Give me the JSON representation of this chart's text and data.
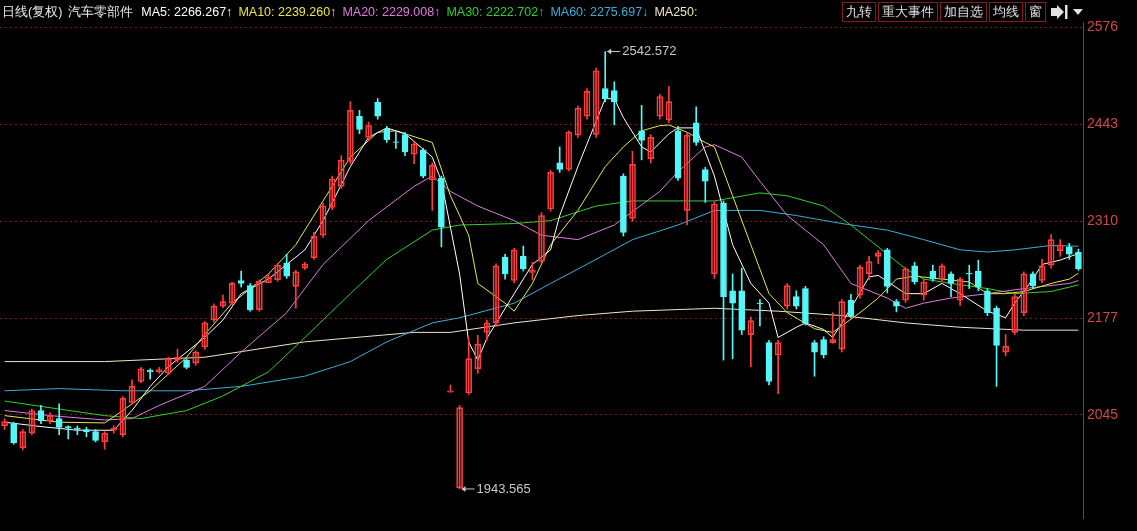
{
  "chart_data": {
    "type": "candlestick",
    "title": "日线(复权)",
    "subtitle": "汽车零部件",
    "categories": [
      null,
      null,
      null,
      null,
      null,
      null,
      null,
      null,
      null,
      null,
      null,
      null,
      null,
      null,
      null,
      null,
      null,
      null,
      null,
      null,
      null,
      null,
      null,
      null,
      null,
      null,
      null,
      null,
      null,
      null,
      null,
      null,
      null,
      null,
      null,
      null,
      null,
      null,
      null,
      null,
      null,
      null,
      null,
      null,
      null,
      null,
      null,
      null,
      null,
      null,
      null,
      null,
      null,
      null,
      null,
      null,
      null,
      null,
      null,
      null,
      null,
      null,
      null,
      null,
      null,
      null,
      null,
      null,
      null,
      null,
      null,
      null,
      null,
      null,
      null,
      null,
      null,
      null,
      null,
      null,
      null,
      null,
      null,
      null,
      null,
      null,
      null,
      null,
      null,
      null,
      null,
      null,
      null,
      null,
      null,
      null,
      null,
      null,
      null,
      null,
      null,
      null,
      null,
      null,
      null,
      null,
      null,
      null,
      null,
      null,
      null,
      null,
      null,
      null,
      null,
      null,
      null,
      null,
      null
    ],
    "ohlc": [
      [
        2030,
        2040,
        2025,
        2036
      ],
      [
        2033,
        2035,
        2005,
        2007
      ],
      [
        2000,
        2025,
        1997,
        2022
      ],
      [
        2020,
        2053,
        2018,
        2051
      ],
      [
        2051,
        2058,
        2033,
        2037
      ],
      [
        2037,
        2048,
        2033,
        2044
      ],
      [
        2040,
        2060,
        2018,
        2028
      ],
      [
        2029,
        2030,
        2012,
        2027
      ],
      [
        2027,
        2030,
        2018,
        2025
      ],
      [
        2025,
        2028,
        2015,
        2022
      ],
      [
        2022,
        2025,
        2008,
        2010
      ],
      [
        2008,
        2022,
        1998,
        2020
      ],
      [
        2024,
        2030,
        2020,
        2027
      ],
      [
        2018,
        2070,
        2015,
        2068
      ],
      [
        2062,
        2093,
        2060,
        2084
      ],
      [
        2091,
        2110,
        2089,
        2108
      ],
      [
        2106,
        2108,
        2094,
        2104
      ],
      [
        2104,
        2110,
        2102,
        2107
      ],
      [
        2102,
        2124,
        2100,
        2122
      ],
      [
        2120,
        2135,
        2117,
        2124
      ],
      [
        2120,
        2122,
        2108,
        2110
      ],
      [
        2116,
        2133,
        2113,
        2131
      ],
      [
        2138,
        2173,
        2135,
        2171
      ],
      [
        2175,
        2197,
        2172,
        2194
      ],
      [
        2194,
        2209,
        2192,
        2200
      ],
      [
        2198,
        2227,
        2196,
        2225
      ],
      [
        2229,
        2242,
        2220,
        2225
      ],
      [
        2222,
        2225,
        2187,
        2189
      ],
      [
        2189,
        2230,
        2187,
        2228
      ],
      [
        2226,
        2238,
        2226,
        2234
      ],
      [
        2230,
        2252,
        2228,
        2250
      ],
      [
        2253,
        2265,
        2232,
        2235
      ],
      [
        2221,
        2243,
        2191,
        2241
      ],
      [
        2246,
        2254,
        2244,
        2252
      ],
      [
        2260,
        2295,
        2258,
        2290
      ],
      [
        2291,
        2335,
        2288,
        2331
      ],
      [
        2329,
        2372,
        2326,
        2368
      ],
      [
        2358,
        2400,
        2355,
        2394
      ],
      [
        2392,
        2474,
        2389,
        2462
      ],
      [
        2454,
        2462,
        2430,
        2436
      ],
      [
        2425,
        2446,
        2420,
        2441
      ],
      [
        2473,
        2478,
        2450,
        2454
      ],
      [
        2436,
        2440,
        2418,
        2422
      ],
      [
        2419,
        2432,
        2410,
        2418
      ],
      [
        2429,
        2432,
        2400,
        2405
      ],
      [
        2402,
        2420,
        2389,
        2416
      ],
      [
        2408,
        2410,
        2370,
        2372
      ],
      [
        2367,
        2390,
        2325,
        2387
      ],
      [
        2369,
        2372,
        2275,
        2302
      ],
      [
        2076,
        2086,
        2076,
        2078
      ],
      [
        1945,
        2058,
        1943.565,
        2055
      ],
      [
        2075,
        2151,
        2073,
        2122
      ],
      [
        2108,
        2154,
        2102,
        2142
      ],
      [
        2158,
        2175,
        2147,
        2171
      ],
      [
        2171,
        2252,
        2166,
        2249
      ],
      [
        2261,
        2265,
        2231,
        2238
      ],
      [
        2229,
        2273,
        2226,
        2271
      ],
      [
        2262,
        2276,
        2242,
        2245
      ],
      [
        2240,
        2254,
        2230,
        2243
      ],
      [
        2255,
        2322,
        2252,
        2318
      ],
      [
        2327,
        2380,
        2324,
        2377
      ],
      [
        2390,
        2412,
        2377,
        2381
      ],
      [
        2381,
        2434,
        2379,
        2432
      ],
      [
        2428,
        2468,
        2425,
        2465
      ],
      [
        2454,
        2492,
        2450,
        2488
      ],
      [
        2429,
        2520,
        2425,
        2516
      ],
      [
        2492,
        2542.572,
        2474,
        2478
      ],
      [
        2489,
        2501,
        2442,
        2474
      ],
      [
        2372,
        2375,
        2290,
        2295
      ],
      [
        2314,
        2406,
        2310,
        2388
      ],
      [
        2434,
        2469,
        2394,
        2421
      ],
      [
        2396,
        2429,
        2390,
        2425
      ],
      [
        2454,
        2484,
        2450,
        2481
      ],
      [
        2449,
        2495,
        2445,
        2474
      ],
      [
        2434,
        2440,
        2366,
        2369
      ],
      [
        2325,
        2431,
        2305,
        2428
      ],
      [
        2445,
        2467,
        2414,
        2418
      ],
      [
        2381,
        2384,
        2336,
        2365
      ],
      [
        2238,
        2337,
        2232,
        2334
      ],
      [
        2335,
        2338,
        2120,
        2207
      ],
      [
        2215,
        2238,
        2122,
        2198
      ],
      [
        2215,
        2246,
        2155,
        2161
      ],
      [
        2155,
        2179,
        2111,
        2174
      ],
      [
        2198,
        2203,
        2167,
        2197
      ],
      [
        2144,
        2147,
        2086,
        2091
      ],
      [
        2127,
        2147,
        2074,
        2144
      ],
      [
        2194,
        2225,
        2190,
        2222
      ],
      [
        2207,
        2215,
        2190,
        2194
      ],
      [
        2218,
        2221,
        2168,
        2171
      ],
      [
        2144,
        2147,
        2098,
        2131
      ],
      [
        2148,
        2152,
        2123,
        2127
      ],
      [
        2144,
        2185,
        2143,
        2148
      ],
      [
        2135,
        2203,
        2131,
        2200
      ],
      [
        2202,
        2210,
        2178,
        2181
      ],
      [
        2209,
        2250,
        2205,
        2247
      ],
      [
        2238,
        2262,
        2230,
        2255
      ],
      [
        2262,
        2270,
        2252,
        2267
      ],
      [
        2271,
        2273,
        2212,
        2221
      ],
      [
        2200,
        2203,
        2186,
        2194
      ],
      [
        2202,
        2247,
        2199,
        2245
      ],
      [
        2249,
        2254,
        2224,
        2227
      ],
      [
        2209,
        2231,
        2202,
        2227
      ],
      [
        2242,
        2250,
        2228,
        2231
      ],
      [
        2231,
        2252,
        2228,
        2249
      ],
      [
        2238,
        2241,
        2207,
        2225
      ],
      [
        2202,
        2233,
        2195,
        2231
      ],
      [
        2239,
        2250,
        2218,
        2238
      ],
      [
        2242,
        2257,
        2215,
        2220
      ],
      [
        2215,
        2218,
        2181,
        2185
      ],
      [
        2191,
        2194,
        2084,
        2140
      ],
      [
        2131,
        2155,
        2126,
        2139
      ],
      [
        2158,
        2210,
        2155,
        2207
      ],
      [
        2185,
        2241,
        2181,
        2238
      ],
      [
        2238,
        2241,
        2218,
        2222
      ],
      [
        2229,
        2258,
        2226,
        2249
      ],
      [
        2250,
        2292,
        2246,
        2285
      ],
      [
        2270,
        2285,
        2262,
        2278
      ],
      [
        2275,
        2280,
        2258,
        2265
      ],
      [
        2268,
        2272,
        2243,
        2245
      ]
    ],
    "series": [
      {
        "type": "line",
        "color": "#ffffff",
        "values": [
          2035,
          null,
          null,
          null,
          2029,
          null,
          null,
          null,
          2024,
          null,
          null,
          null,
          2024,
          null,
          2051,
          null,
          2084,
          null,
          2111,
          null,
          null,
          null,
          2151,
          null,
          2175,
          null,
          2211,
          null,
          null,
          2231,
          null,
          null,
          null,
          2271,
          null,
          2311,
          null,
          null,
          2385,
          null,
          2425,
          null,
          2438,
          null,
          2430,
          null,
          null,
          2398,
          2365,
          null,
          2238,
          2145,
          2120,
          2150,
          null,
          null,
          2211,
          null,
          2251,
          null,
          2271,
          2318,
          null,
          2385,
          null,
          null,
          2478,
          2478,
          2452,
          null,
          2412,
          2405,
          null,
          2430,
          2438,
          null,
          2438,
          2405,
          2372,
          null,
          2278,
          null,
          2225,
          null,
          2198,
          2151,
          null,
          2165,
          2171,
          null,
          2162,
          2151,
          null,
          2191,
          null,
          2234,
          2236,
          null,
          null,
          2211,
          null,
          2211,
          null,
          2225,
          null,
          2211,
          null,
          null,
          2187,
          null,
          2178,
          2198,
          null,
          2231,
          2251,
          null,
          2257,
          null,
          2266
        ]
      },
      {
        "type": "line",
        "color": "#e8e84a",
        "values": [
          2044,
          null,
          null,
          null,
          null,
          null,
          2035,
          null,
          null,
          null,
          null,
          2034,
          null,
          2051,
          null,
          null,
          2078,
          null,
          null,
          null,
          2124,
          null,
          2155,
          null,
          null,
          2198,
          null,
          null,
          null,
          2238,
          null,
          null,
          2278,
          null,
          null,
          2338,
          null,
          null,
          2398,
          null,
          null,
          2432,
          null,
          2434,
          null,
          null,
          null,
          2418,
          null,
          2345,
          null,
          2291,
          2225,
          null,
          null,
          2198,
          2187,
          null,
          2225,
          null,
          2278,
          null,
          null,
          2325,
          null,
          null,
          2385,
          null,
          2412,
          null,
          2434,
          null,
          2441,
          2442,
          null,
          2432,
          null,
          2418,
          2412,
          null,
          2345,
          null,
          2278,
          null,
          2211,
          null,
          2185,
          null,
          null,
          2163,
          null,
          2158,
          null,
          null,
          2185,
          null,
          2205,
          null,
          2231,
          null,
          2235,
          null,
          null,
          2231,
          null,
          null,
          2227,
          null,
          2211,
          null,
          2211,
          null,
          2214,
          null,
          null,
          2225,
          null,
          2231,
          2239
        ]
      },
      {
        "type": "line",
        "color": "#e07ae0",
        "values": [
          2051,
          null,
          null,
          null,
          null,
          2044,
          null,
          null,
          null,
          null,
          null,
          2038,
          null,
          null,
          2040,
          null,
          null,
          2058,
          null,
          null,
          null,
          null,
          2084,
          null,
          null,
          null,
          2131,
          null,
          null,
          null,
          null,
          2185,
          null,
          null,
          null,
          2251,
          null,
          null,
          null,
          null,
          2311,
          null,
          null,
          null,
          null,
          2358,
          null,
          2372,
          null,
          2351,
          null,
          null,
          2331,
          null,
          null,
          null,
          2311,
          null,
          null,
          2291,
          null,
          null,
          null,
          2285,
          null,
          null,
          null,
          2305,
          null,
          null,
          null,
          null,
          2351,
          null,
          2378,
          null,
          null,
          2412,
          2415,
          null,
          null,
          2398,
          null,
          2365,
          null,
          null,
          2318,
          null,
          null,
          null,
          2278,
          null,
          null,
          2225,
          null,
          null,
          null,
          2205,
          null,
          2191,
          null,
          2198,
          null,
          null,
          2205,
          null,
          null,
          null,
          2211,
          null,
          null,
          null,
          2218,
          null,
          null,
          null,
          null,
          2225,
          2229
        ]
      },
      {
        "type": "line",
        "color": "#2ed12e",
        "values": [
          2064,
          null,
          null,
          null,
          null,
          null,
          2053,
          null,
          null,
          null,
          null,
          2044,
          null,
          null,
          null,
          2040,
          null,
          null,
          null,
          null,
          2051,
          null,
          null,
          null,
          2071,
          null,
          null,
          null,
          null,
          2104,
          null,
          null,
          null,
          2151,
          null,
          null,
          null,
          null,
          2211,
          null,
          null,
          null,
          2258,
          null,
          null,
          null,
          null,
          2298,
          null,
          null,
          2305,
          null,
          null,
          null,
          null,
          null,
          2307,
          null,
          null,
          null,
          2311,
          null,
          null,
          null,
          null,
          2331,
          null,
          null,
          null,
          2338,
          null,
          null,
          null,
          null,
          2338,
          null,
          null,
          null,
          2338,
          null,
          null,
          null,
          null,
          2349,
          null,
          null,
          2345,
          null,
          null,
          null,
          2331,
          null,
          null,
          2305,
          null,
          null,
          null,
          2265,
          null,
          2245,
          null,
          2231,
          null,
          null,
          2225,
          null,
          null,
          null,
          2218,
          null,
          null,
          2211,
          null,
          null,
          null,
          2214,
          null,
          null,
          2223
        ]
      },
      {
        "type": "line",
        "color": "#3aaed8",
        "values": [
          2078,
          null,
          null,
          null,
          null,
          null,
          2081,
          null,
          null,
          null,
          null,
          null,
          null,
          2078,
          null,
          null,
          null,
          null,
          null,
          null,
          2078,
          null,
          null,
          null,
          null,
          null,
          2084,
          null,
          null,
          null,
          null,
          null,
          null,
          2098,
          null,
          null,
          null,
          null,
          2118,
          null,
          null,
          null,
          2145,
          null,
          null,
          null,
          null,
          2171,
          null,
          null,
          2178,
          null,
          null,
          null,
          null,
          null,
          2198,
          null,
          null,
          null,
          2225,
          null,
          null,
          null,
          null,
          2258,
          null,
          null,
          null,
          2285,
          null,
          null,
          null,
          null,
          2305,
          null,
          null,
          null,
          2325,
          null,
          null,
          null,
          null,
          2325,
          null,
          null,
          null,
          2318,
          null,
          null,
          null,
          null,
          2307,
          null,
          null,
          null,
          null,
          2298,
          null,
          null,
          null,
          2285,
          null,
          null,
          null,
          2271,
          null,
          null,
          2268,
          null,
          null,
          2271,
          null,
          null,
          null,
          2277,
          null,
          null,
          2276
        ]
      },
      {
        "type": "line",
        "color": "#efe6c6",
        "values": [
          2118,
          null,
          null,
          null,
          null,
          null,
          null,
          null,
          null,
          null,
          null,
          2118,
          null,
          null,
          null,
          null,
          null,
          null,
          null,
          null,
          null,
          null,
          2124,
          null,
          null,
          null,
          null,
          null,
          null,
          null,
          null,
          null,
          null,
          2145,
          null,
          null,
          null,
          null,
          null,
          null,
          null,
          null,
          null,
          null,
          null,
          2158,
          null,
          null,
          null,
          2158,
          null,
          null,
          null,
          null,
          null,
          null,
          2171,
          null,
          null,
          null,
          null,
          null,
          null,
          2181,
          null,
          null,
          null,
          null,
          null,
          2187,
          null,
          null,
          null,
          null,
          null,
          null,
          null,
          null,
          2191,
          null,
          null,
          null,
          null,
          null,
          null,
          2187,
          null,
          null,
          null,
          null,
          null,
          null,
          2181,
          null,
          null,
          null,
          null,
          null,
          null,
          2171,
          null,
          null,
          null,
          null,
          null,
          2165,
          null,
          null,
          null,
          null,
          null,
          null,
          2161,
          null,
          null,
          null,
          null,
          null,
          2161
        ]
      }
    ],
    "ylim": [
      1903,
      2583
    ],
    "yticks": [
      2045,
      2177,
      2310,
      2443,
      2576
    ],
    "grid": "y",
    "annotations": [
      "MA5: 2266.267↑",
      "MA10: 2239.260↑",
      "MA20: 2229.008↑",
      "MA30: 2222.702↑",
      "MA60: 2275.697↓",
      "MA250:",
      "2542.572",
      "1943.565",
      "九转",
      "重大事件",
      "加自选",
      "均线",
      "窗"
    ]
  }
}
